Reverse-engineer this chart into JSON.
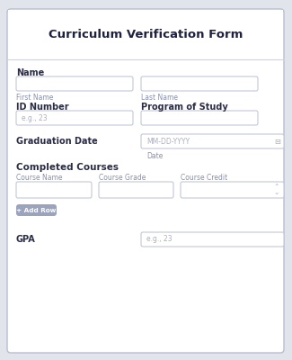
{
  "title": "Curriculum Verification Form",
  "bg_outer": "#e2e4ec",
  "bg_inner": "#ffffff",
  "header_line_color": "#d0d3dc",
  "title_color": "#1e2240",
  "label_color": "#2a2d45",
  "sublabel_color": "#8890aa",
  "placeholder_color": "#aab0c4",
  "field_bg": "#ffffff",
  "field_border": "#c4c8d8",
  "button_bg": "#9ba3bd",
  "button_text": "#ffffff",
  "spinner_color": "#aab0c4",
  "calendar_icon_color": "#aab0c4",
  "card_border": "#b8bdd0",
  "col_labels": [
    "Course Name",
    "Course Grade",
    "Course Credit"
  ]
}
